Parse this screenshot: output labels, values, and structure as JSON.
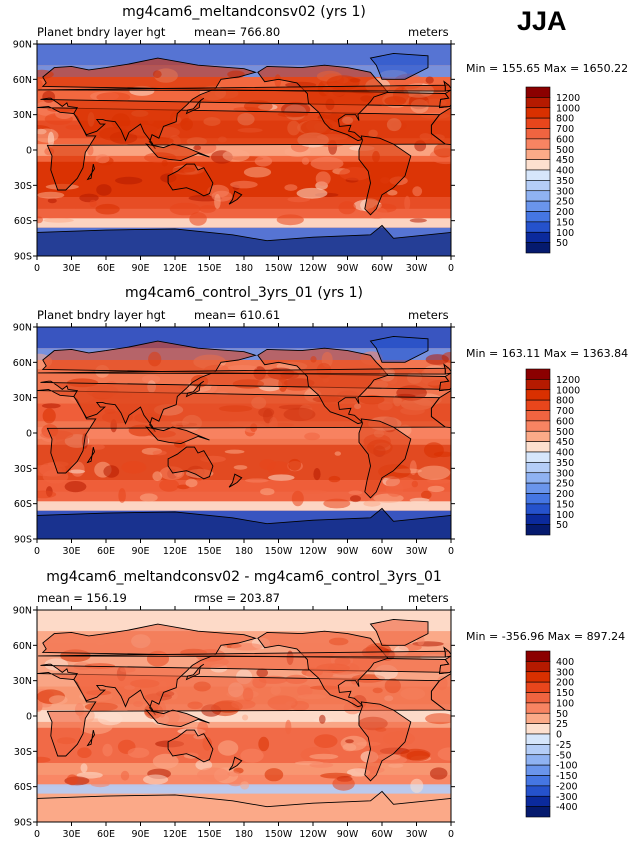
{
  "season": "JJA",
  "panels": [
    {
      "title": "mg4cam6_meltandconsv02 (yrs 1)",
      "left_label": "Planet bndry layer hgt",
      "center_label": "mean= 766.80",
      "right_label": "meters",
      "min_max": "Min = 155.65 Max = 1650.22",
      "colorbar_labels": [
        "1200",
        "1000",
        "800",
        "700",
        "600",
        "500",
        "450",
        "400",
        "350",
        "300",
        "250",
        "200",
        "150",
        "100",
        "50"
      ]
    },
    {
      "title": "mg4cam6_control_3yrs_01 (yrs 1)",
      "left_label": "Planet bndry layer hgt",
      "center_label": "mean= 610.61",
      "right_label": "meters",
      "min_max": "Min = 163.11 Max = 1363.84",
      "colorbar_labels": [
        "1200",
        "1000",
        "800",
        "700",
        "600",
        "500",
        "450",
        "400",
        "350",
        "300",
        "250",
        "200",
        "150",
        "100",
        "50"
      ]
    },
    {
      "title": "mg4cam6_meltandconsv02 - mg4cam6_control_3yrs_01",
      "left_label": "mean = 156.19",
      "center_label": "rmse = 203.87",
      "right_label": "meters",
      "min_max": "Min = -356.96 Max = 897.24",
      "colorbar_labels": [
        "400",
        "300",
        "200",
        "150",
        "100",
        "50",
        "25",
        "0",
        "-25",
        "-50",
        "-100",
        "-150",
        "-200",
        "-300",
        "-400"
      ]
    }
  ],
  "chart_data": [
    {
      "type": "heatmap",
      "title": "mg4cam6_meltandconsv02 (yrs 1)",
      "variable": "Planet bndry layer hgt",
      "units": "meters",
      "mean": 766.8,
      "min": 155.65,
      "max": 1650.22,
      "x_ticks": [
        "0",
        "30E",
        "60E",
        "90E",
        "120E",
        "150E",
        "180",
        "150W",
        "120W",
        "90W",
        "60W",
        "30W",
        "0"
      ],
      "y_ticks": [
        "90N",
        "60N",
        "30N",
        "0",
        "30S",
        "60S",
        "90S"
      ],
      "xlim": [
        0,
        360
      ],
      "ylim": [
        -90,
        90
      ],
      "contour_levels": [
        50,
        100,
        150,
        200,
        250,
        300,
        350,
        400,
        450,
        500,
        600,
        700,
        800,
        1000,
        1200
      ]
    },
    {
      "type": "heatmap",
      "title": "mg4cam6_control_3yrs_01 (yrs 1)",
      "variable": "Planet bndry layer hgt",
      "units": "meters",
      "mean": 610.61,
      "min": 163.11,
      "max": 1363.84,
      "x_ticks": [
        "0",
        "30E",
        "60E",
        "90E",
        "120E",
        "150E",
        "180",
        "150W",
        "120W",
        "90W",
        "60W",
        "30W",
        "0"
      ],
      "y_ticks": [
        "90N",
        "60N",
        "30N",
        "0",
        "30S",
        "60S",
        "90S"
      ],
      "xlim": [
        0,
        360
      ],
      "ylim": [
        -90,
        90
      ],
      "contour_levels": [
        50,
        100,
        150,
        200,
        250,
        300,
        350,
        400,
        450,
        500,
        600,
        700,
        800,
        1000,
        1200
      ]
    },
    {
      "type": "heatmap",
      "title": "mg4cam6_meltandconsv02 - mg4cam6_control_3yrs_01",
      "units": "meters",
      "mean": 156.19,
      "rmse": 203.87,
      "min": -356.96,
      "max": 897.24,
      "x_ticks": [
        "0",
        "30E",
        "60E",
        "90E",
        "120E",
        "150E",
        "180",
        "150W",
        "120W",
        "90W",
        "60W",
        "30W",
        "0"
      ],
      "y_ticks": [
        "90N",
        "60N",
        "30N",
        "0",
        "30S",
        "60S",
        "90S"
      ],
      "xlim": [
        0,
        360
      ],
      "ylim": [
        -90,
        90
      ],
      "contour_levels": [
        -400,
        -300,
        -200,
        -150,
        -100,
        -50,
        -25,
        0,
        25,
        50,
        100,
        150,
        200,
        300,
        400
      ]
    }
  ],
  "colors": {
    "bar_palette": [
      "#8b0000",
      "#b51a00",
      "#d93000",
      "#e8461c",
      "#f06440",
      "#f88462",
      "#fbaa88",
      "#fde0cf",
      "#d6e6fb",
      "#b4cdf7",
      "#8fb2f2",
      "#6a95ec",
      "#4576e3",
      "#2552cc",
      "#0b2a9c",
      "#051a6e"
    ],
    "land_outline": "#000000"
  }
}
